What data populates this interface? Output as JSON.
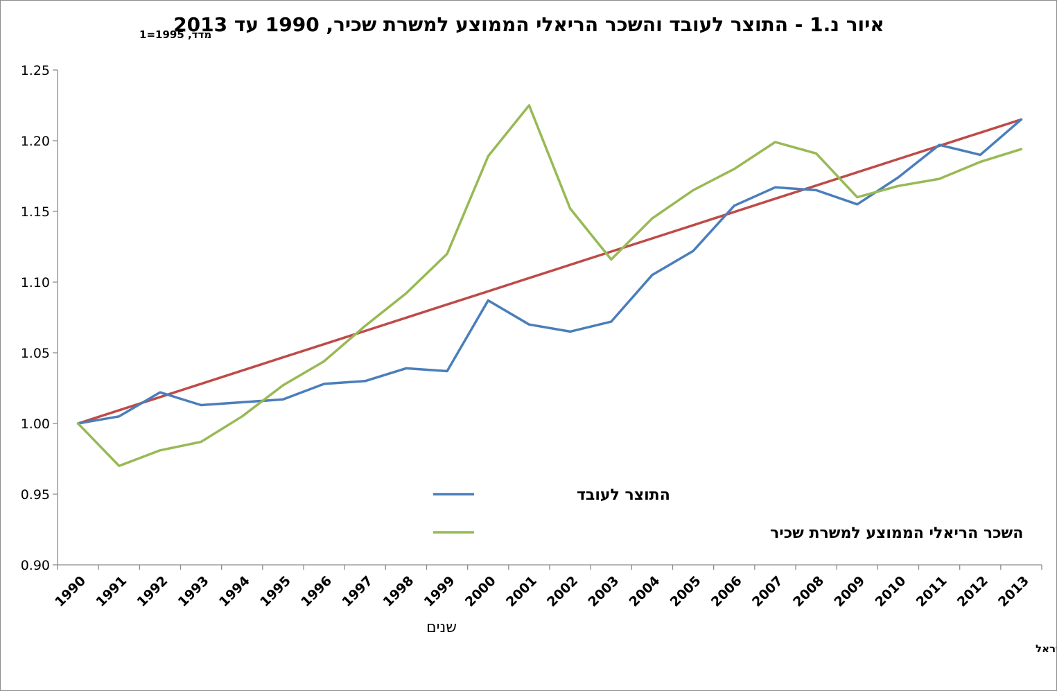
{
  "chart_data": {
    "type": "line",
    "title": "איור נ.1 - התוצר לעובד והשכר הריאלי הממוצע למשרת שכיר,  1990 עד 2013",
    "ylabel": "מדד, 1995=1",
    "xlabel": "שנים",
    "source": "המקור : נתוני הביטוח הלאומי למשרת שכיר, חשבונאות לאומית ועיבודי בנק ישראל",
    "ylim": [
      0.9,
      1.25
    ],
    "yticks": [
      "0.90",
      "0.95",
      "1.00",
      "1.05",
      "1.10",
      "1.15",
      "1.20",
      "1.25"
    ],
    "categories": [
      "1990",
      "1991",
      "1992",
      "1993",
      "1994",
      "1995",
      "1996",
      "1997",
      "1998",
      "1999",
      "2000",
      "2001",
      "2002",
      "2003",
      "2004",
      "2005",
      "2006",
      "2007",
      "2008",
      "2009",
      "2010",
      "2011",
      "2012",
      "2013"
    ],
    "grid": false,
    "legend_position": "center-bottom",
    "series": [
      {
        "name": "התוצר לעובד",
        "color": "#4a7ebb",
        "values": [
          1.0,
          1.005,
          1.022,
          1.013,
          1.015,
          1.017,
          1.028,
          1.03,
          1.039,
          1.037,
          1.087,
          1.07,
          1.065,
          1.072,
          1.105,
          1.122,
          1.154,
          1.167,
          1.165,
          1.155,
          1.174,
          1.197,
          1.19,
          1.215
        ]
      },
      {
        "name": "השכר הריאלי הממוצע למשרת שכיר",
        "color": "#98b954",
        "values": [
          1.0,
          0.97,
          0.981,
          0.987,
          1.005,
          1.027,
          1.044,
          1.069,
          1.092,
          1.12,
          1.189,
          1.225,
          1.152,
          1.116,
          1.145,
          1.165,
          1.18,
          1.199,
          1.191,
          1.16,
          1.168,
          1.173,
          1.185,
          1.194
        ]
      },
      {
        "color": "#be4b48",
        "values": [
          1.0,
          1.00935,
          1.0187,
          1.02805,
          1.0374,
          1.04675,
          1.0561,
          1.06545,
          1.0748,
          1.08415,
          1.0935,
          1.10285,
          1.1122,
          1.12155,
          1.1309,
          1.14025,
          1.1496,
          1.15895,
          1.1683,
          1.17765,
          1.187,
          1.19635,
          1.2057,
          1.215
        ]
      }
    ]
  }
}
